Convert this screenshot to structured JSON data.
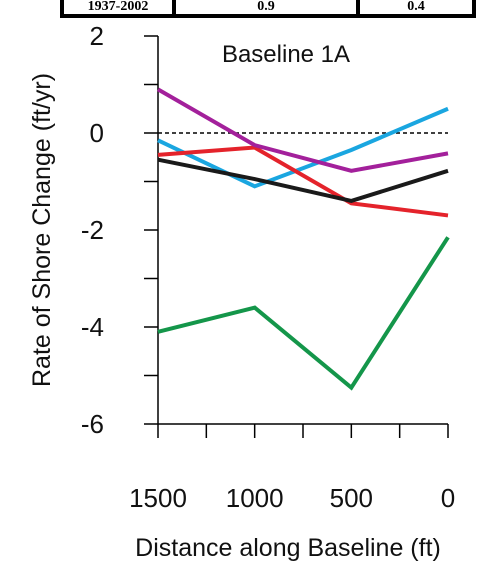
{
  "header_table": {
    "row": [
      "1937-2002",
      "0.9",
      "0.4"
    ]
  },
  "chart_data": {
    "type": "line",
    "title": "Baseline 1A",
    "xlabel": "Distance along Baseline (ft)",
    "ylabel": "Rate of Shore Change (ft/yr)",
    "x": [
      1500,
      1000,
      500,
      0
    ],
    "xlim": [
      1500,
      0
    ],
    "ylim": [
      -6,
      2
    ],
    "x_ticks": [
      "1500",
      "1000",
      "500",
      "0"
    ],
    "y_ticks": [
      "2",
      "0",
      "-2",
      "-4",
      "-6"
    ],
    "zero_line": "dashed",
    "series": [
      {
        "color": "#1aa6e0",
        "values": [
          -0.15,
          -1.1,
          -0.35,
          0.5
        ]
      },
      {
        "color": "#e4232b",
        "values": [
          -0.45,
          -0.3,
          -1.45,
          -1.7
        ]
      },
      {
        "color": "#a3209b",
        "values": [
          0.9,
          -0.25,
          -0.78,
          -0.42
        ]
      },
      {
        "color": "#1a1a1a",
        "values": [
          -0.55,
          -0.95,
          -1.4,
          -0.78
        ]
      },
      {
        "color": "#14964a",
        "values": [
          -4.1,
          -3.6,
          -5.25,
          -2.15
        ]
      }
    ]
  }
}
